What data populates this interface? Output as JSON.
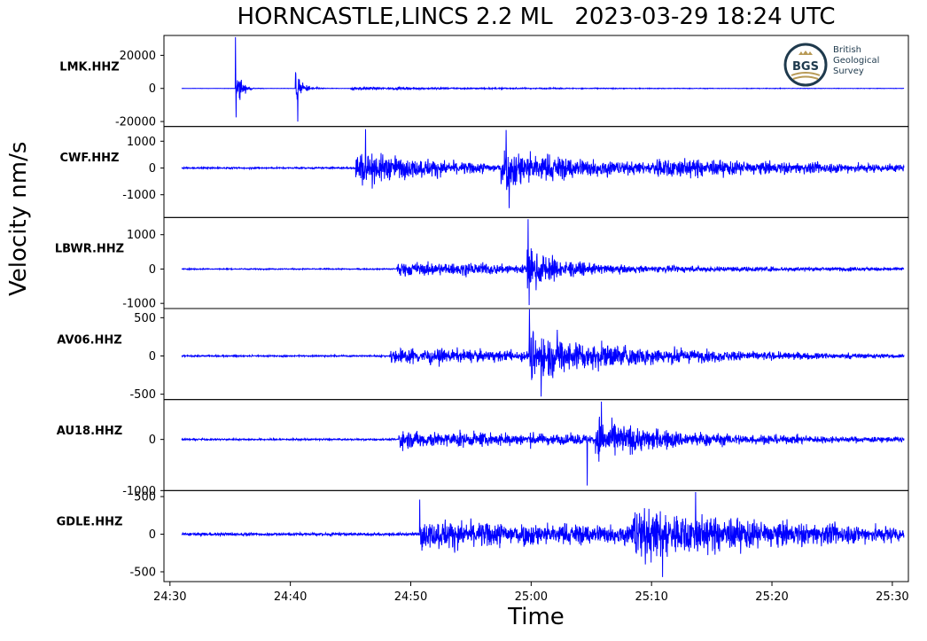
{
  "title": "HORNCASTLE,LINCS 2.2 ML   2023-03-29 18:24 UTC",
  "xlabel": "Time",
  "ylabel": "Velocity nm/s",
  "logo": {
    "abbrev": "BGS",
    "lines": [
      "British",
      "Geological",
      "Survey"
    ]
  },
  "colors": {
    "trace": "#0000ff",
    "axis": "#000000",
    "logo_ring": "#1f3a4d",
    "logo_accent": "#b89a56"
  },
  "chart_data": {
    "type": "line",
    "x_ticks": [
      "24:30",
      "24:40",
      "24:50",
      "25:00",
      "25:10",
      "25:20",
      "25:30"
    ],
    "x_tick_seconds": [
      0,
      600,
      1200,
      1800,
      2400,
      3000,
      3600
    ],
    "x_range_seconds": [
      -30,
      3680
    ],
    "trace_range_seconds": [
      58,
      3658
    ],
    "panels": [
      {
        "station": "LMK.HHZ",
        "ylim": [
          -23000,
          32000
        ],
        "yticks": [
          20000,
          0,
          -20000
        ],
        "ytick_labels": [
          "20000",
          "0",
          "-20000"
        ],
        "noise": 90,
        "events": [
          {
            "t": 332,
            "amp": 15000,
            "decay": 14
          },
          {
            "t": 340,
            "amp": 6000,
            "decay": 28
          },
          {
            "t": 625,
            "amp": 11000,
            "decay": 38
          },
          {
            "t": 900,
            "amp": 900,
            "decay": 900
          }
        ],
        "peaks": [
          {
            "t": 327,
            "v": 31000
          },
          {
            "t": 330,
            "v": -17500
          },
          {
            "t": 637,
            "v": -20000
          }
        ]
      },
      {
        "station": "CWF.HHZ",
        "ylim": [
          -1850,
          1550
        ],
        "yticks": [
          1000,
          0,
          -1000
        ],
        "ytick_labels": [
          "1000",
          "0",
          "-1000"
        ],
        "noise": 35,
        "events": [
          {
            "t": 925,
            "amp": 700,
            "decay": 500
          },
          {
            "t": 1650,
            "amp": 750,
            "decay": 500
          },
          {
            "t": 2400,
            "amp": 260,
            "decay": 1800
          }
        ],
        "peaks": [
          {
            "t": 975,
            "v": 1450
          },
          {
            "t": 985,
            "v": -1700
          },
          {
            "t": 1675,
            "v": 1420
          },
          {
            "t": 1690,
            "v": -1500
          }
        ]
      },
      {
        "station": "LBWR.HHZ",
        "ylim": [
          -1150,
          1500
        ],
        "yticks": [
          1000,
          0,
          -1000
        ],
        "ytick_labels": [
          "1000",
          "0",
          "-1000"
        ],
        "noise": 20,
        "events": [
          {
            "t": 1130,
            "amp": 230,
            "decay": 1400
          },
          {
            "t": 1780,
            "amp": 650,
            "decay": 130
          }
        ],
        "peaks": [
          {
            "t": 1785,
            "v": 1450
          },
          {
            "t": 1790,
            "v": -1050
          }
        ]
      },
      {
        "station": "AV06.HHZ",
        "ylim": [
          -570,
          620
        ],
        "yticks": [
          500,
          0,
          -500
        ],
        "ytick_labels": [
          "500",
          "0",
          "-500"
        ],
        "noise": 12,
        "events": [
          {
            "t": 1100,
            "amp": 110,
            "decay": 1300
          },
          {
            "t": 1790,
            "amp": 290,
            "decay": 500
          }
        ],
        "peaks": [
          {
            "t": 1792,
            "v": 610
          },
          {
            "t": 1850,
            "v": -530
          }
        ]
      },
      {
        "station": "AU18.HHZ",
        "ylim": [
          -1000,
          780
        ],
        "yticks": [
          0,
          -1000
        ],
        "ytick_labels": [
          "0",
          "-1000"
        ],
        "noise": 20,
        "events": [
          {
            "t": 1140,
            "amp": 180,
            "decay": 1600
          },
          {
            "t": 2120,
            "amp": 340,
            "decay": 350
          }
        ],
        "peaks": [
          {
            "t": 2150,
            "v": 740
          },
          {
            "t": 2080,
            "v": -900
          }
        ]
      },
      {
        "station": "GDLE.HHZ",
        "ylim": [
          -630,
          580
        ],
        "yticks": [
          500,
          0,
          -500
        ],
        "ytick_labels": [
          "500",
          "0",
          "-500"
        ],
        "noise": 22,
        "events": [
          {
            "t": 1245,
            "amp": 200,
            "decay": 2400
          },
          {
            "t": 2300,
            "amp": 300,
            "decay": 600
          }
        ],
        "peaks": [
          {
            "t": 1245,
            "v": 460
          },
          {
            "t": 2455,
            "v": -570
          },
          {
            "t": 2620,
            "v": 560
          }
        ]
      }
    ]
  }
}
